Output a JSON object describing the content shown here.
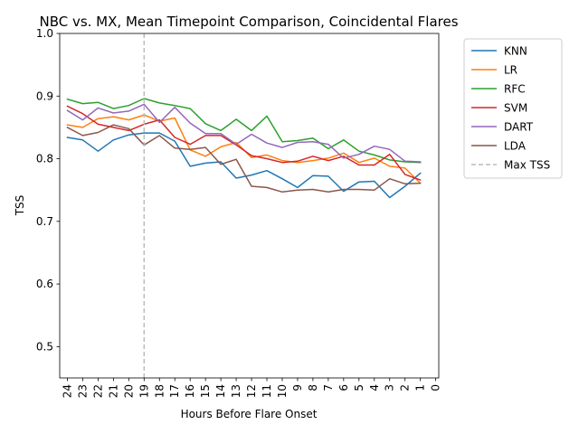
{
  "chart_data": {
    "type": "line",
    "title": "NBC vs. MX, Mean Timepoint Comparison, Coincidental Flares",
    "xlabel": "Hours Before Flare Onset",
    "ylabel": "TSS",
    "x": [
      24,
      23,
      22,
      21,
      20,
      19,
      18,
      17,
      16,
      15,
      14,
      13,
      12,
      11,
      10,
      9,
      8,
      7,
      6,
      5,
      4,
      3,
      2,
      1
    ],
    "x_ticks": [
      24,
      23,
      22,
      21,
      20,
      19,
      18,
      17,
      16,
      15,
      14,
      13,
      12,
      11,
      10,
      9,
      8,
      7,
      6,
      5,
      4,
      3,
      2,
      1,
      0
    ],
    "xlim": [
      24.5,
      -0.2
    ],
    "ylim": [
      0.45,
      1.0
    ],
    "y_ticks": [
      0.5,
      0.6,
      0.7,
      0.8,
      0.9,
      1.0
    ],
    "grid": false,
    "legend_position": "outside-top-right",
    "series": [
      {
        "name": "KNN",
        "color": "#1f77b4",
        "values": [
          0.834,
          0.83,
          0.812,
          0.83,
          0.838,
          0.841,
          0.841,
          0.828,
          0.788,
          0.793,
          0.795,
          0.769,
          0.774,
          0.781,
          0.768,
          0.754,
          0.773,
          0.772,
          0.748,
          0.763,
          0.764,
          0.738,
          0.756,
          0.777
        ]
      },
      {
        "name": "LR",
        "color": "#ff7f0e",
        "values": [
          0.854,
          0.85,
          0.864,
          0.867,
          0.862,
          0.87,
          0.86,
          0.865,
          0.814,
          0.804,
          0.819,
          0.826,
          0.802,
          0.806,
          0.797,
          0.794,
          0.797,
          0.801,
          0.809,
          0.794,
          0.801,
          0.788,
          0.785,
          0.761
        ]
      },
      {
        "name": "RFC",
        "color": "#2ca02c",
        "values": [
          0.895,
          0.888,
          0.89,
          0.88,
          0.885,
          0.896,
          0.889,
          0.885,
          0.88,
          0.856,
          0.845,
          0.863,
          0.845,
          0.868,
          0.827,
          0.829,
          0.833,
          0.816,
          0.83,
          0.812,
          0.806,
          0.798,
          0.795,
          0.794
        ]
      },
      {
        "name": "SVM",
        "color": "#d62728",
        "values": [
          0.884,
          0.872,
          0.855,
          0.85,
          0.845,
          0.855,
          0.862,
          0.834,
          0.823,
          0.837,
          0.837,
          0.822,
          0.805,
          0.8,
          0.794,
          0.796,
          0.804,
          0.797,
          0.804,
          0.79,
          0.79,
          0.807,
          0.775,
          0.766
        ]
      },
      {
        "name": "DART",
        "color": "#9467bd",
        "values": [
          0.877,
          0.862,
          0.881,
          0.873,
          0.876,
          0.887,
          0.858,
          0.882,
          0.857,
          0.84,
          0.84,
          0.823,
          0.839,
          0.825,
          0.818,
          0.826,
          0.827,
          0.823,
          0.801,
          0.807,
          0.82,
          0.815,
          0.796,
          0.795
        ]
      },
      {
        "name": "LDA",
        "color": "#8c564b",
        "values": [
          0.85,
          0.837,
          0.842,
          0.854,
          0.848,
          0.822,
          0.837,
          0.817,
          0.815,
          0.818,
          0.791,
          0.799,
          0.756,
          0.754,
          0.747,
          0.75,
          0.751,
          0.747,
          0.751,
          0.751,
          0.75,
          0.768,
          0.76,
          0.761
        ]
      }
    ],
    "reference_line": {
      "name": "Max TSS",
      "x": 19,
      "color": "#bbbbbb",
      "style": "dashed"
    }
  }
}
